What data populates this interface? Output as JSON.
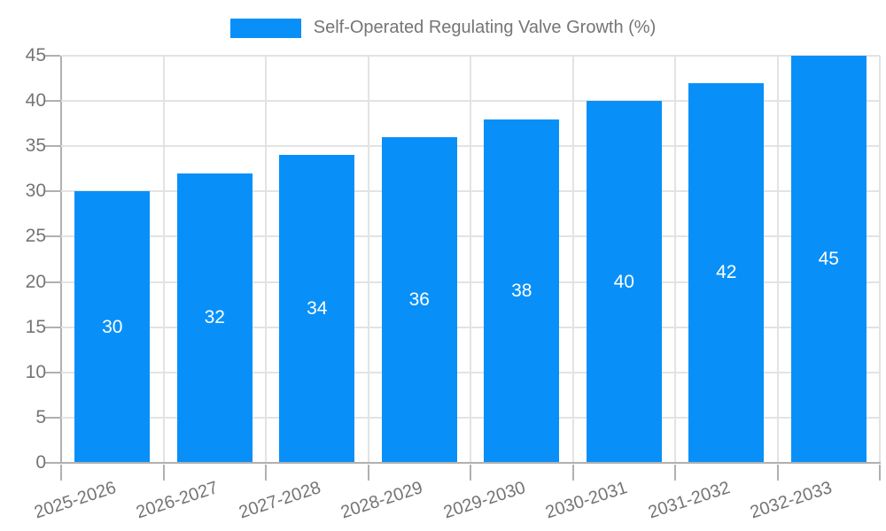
{
  "legend": {
    "label": "Self-Operated Regulating Valve Growth (%)"
  },
  "chart_data": {
    "type": "bar",
    "title": "Self-Operated Regulating Valve Growth (%)",
    "categories": [
      "2025-2026",
      "2026-2027",
      "2027-2028",
      "2028-2029",
      "2029-2030",
      "2030-2031",
      "2031-2032",
      "2032-2033"
    ],
    "values": [
      30,
      32,
      34,
      36,
      38,
      40,
      42,
      45
    ],
    "xlabel": "",
    "ylabel": "",
    "ylim": [
      0,
      45
    ],
    "ytick_step": 5,
    "yticks": [
      0,
      5,
      10,
      15,
      20,
      25,
      30,
      35,
      40,
      45
    ],
    "grid": true,
    "legend_position": "top-center",
    "value_label_position": "inside-center",
    "colors": {
      "bar": "#0990f8",
      "value_label": "#ffffff",
      "axis_line": "#b0b0b0",
      "gridline": "#e3e3e3",
      "tick_text": "#757575",
      "legend_text": "#757575",
      "background": "#ffffff"
    }
  }
}
